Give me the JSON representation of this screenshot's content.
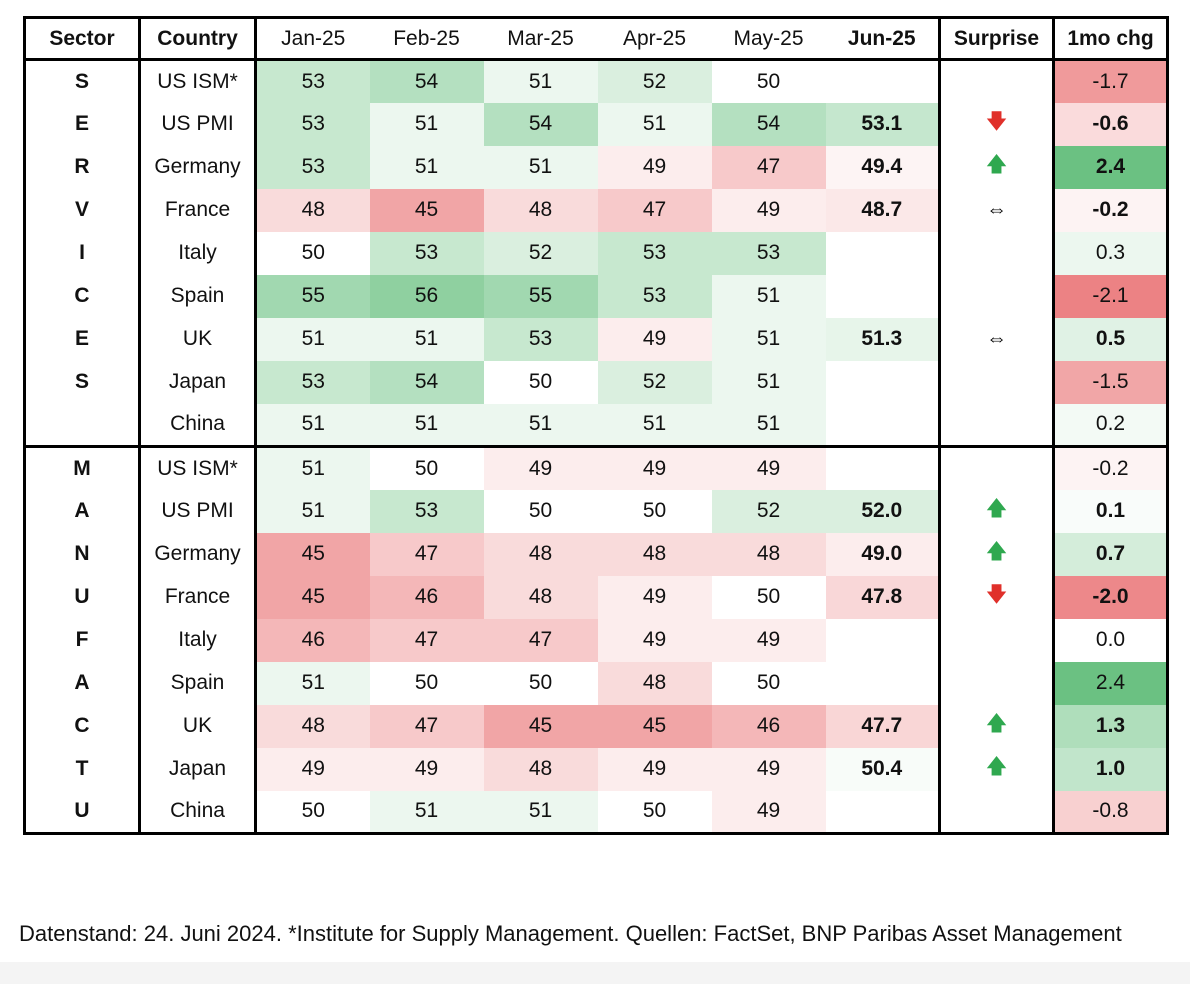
{
  "chart_data": {
    "type": "table",
    "columns": [
      "Sector",
      "Country",
      "Jan-25",
      "Feb-25",
      "Mar-25",
      "Apr-25",
      "May-25",
      "Jun-25",
      "Surprise",
      "1mo chg"
    ],
    "sectors": [
      {
        "name": "SERVICES",
        "rows": [
          {
            "country": "US ISM*",
            "values": [
              "53",
              "54",
              "51",
              "52",
              "50"
            ],
            "jun": "",
            "surprise": "",
            "chg": "-1.7",
            "chg_bold": false,
            "group_start": false
          },
          {
            "country": "US PMI",
            "values": [
              "53",
              "51",
              "54",
              "51",
              "54"
            ],
            "jun": "53.1",
            "surprise": "down",
            "chg": "-0.6",
            "chg_bold": true,
            "group_start": false
          },
          {
            "country": "Germany",
            "values": [
              "53",
              "51",
              "51",
              "49",
              "47"
            ],
            "jun": "49.4",
            "surprise": "up",
            "chg": "2.4",
            "chg_bold": true,
            "group_start": true
          },
          {
            "country": "France",
            "values": [
              "48",
              "45",
              "48",
              "47",
              "49"
            ],
            "jun": "48.7",
            "surprise": "flat",
            "chg": "-0.2",
            "chg_bold": true,
            "group_start": false
          },
          {
            "country": "Italy",
            "values": [
              "50",
              "53",
              "52",
              "53",
              "53"
            ],
            "jun": "",
            "surprise": "",
            "chg": "0.3",
            "chg_bold": false,
            "group_start": false
          },
          {
            "country": "Spain",
            "values": [
              "55",
              "56",
              "55",
              "53",
              "51"
            ],
            "jun": "",
            "surprise": "",
            "chg": "-2.1",
            "chg_bold": false,
            "group_start": false
          },
          {
            "country": "UK",
            "values": [
              "51",
              "51",
              "53",
              "49",
              "51"
            ],
            "jun": "51.3",
            "surprise": "flat",
            "chg": "0.5",
            "chg_bold": true,
            "group_start": false
          },
          {
            "country": "Japan",
            "values": [
              "53",
              "54",
              "50",
              "52",
              "51"
            ],
            "jun": "",
            "surprise": "",
            "chg": "-1.5",
            "chg_bold": false,
            "group_start": true
          },
          {
            "country": "China",
            "values": [
              "51",
              "51",
              "51",
              "51",
              "51"
            ],
            "jun": "",
            "surprise": "",
            "chg": "0.2",
            "chg_bold": false,
            "group_start": false
          }
        ]
      },
      {
        "name": "MANUFACTU",
        "rows": [
          {
            "country": "US ISM*",
            "values": [
              "51",
              "50",
              "49",
              "49",
              "49"
            ],
            "jun": "",
            "surprise": "",
            "chg": "-0.2",
            "chg_bold": false,
            "group_start": false
          },
          {
            "country": "US PMI",
            "values": [
              "51",
              "53",
              "50",
              "50",
              "52"
            ],
            "jun": "52.0",
            "surprise": "up",
            "chg": "0.1",
            "chg_bold": true,
            "group_start": false
          },
          {
            "country": "Germany",
            "values": [
              "45",
              "47",
              "48",
              "48",
              "48"
            ],
            "jun": "49.0",
            "surprise": "up",
            "chg": "0.7",
            "chg_bold": true,
            "group_start": true
          },
          {
            "country": "France",
            "values": [
              "45",
              "46",
              "48",
              "49",
              "50"
            ],
            "jun": "47.8",
            "surprise": "down",
            "chg": "-2.0",
            "chg_bold": true,
            "group_start": false
          },
          {
            "country": "Italy",
            "values": [
              "46",
              "47",
              "47",
              "49",
              "49"
            ],
            "jun": "",
            "surprise": "",
            "chg": "0.0",
            "chg_bold": false,
            "group_start": false
          },
          {
            "country": "Spain",
            "values": [
              "51",
              "50",
              "50",
              "48",
              "50"
            ],
            "jun": "",
            "surprise": "",
            "chg": "2.4",
            "chg_bold": false,
            "group_start": false
          },
          {
            "country": "UK",
            "values": [
              "48",
              "47",
              "45",
              "45",
              "46"
            ],
            "jun": "47.7",
            "surprise": "up",
            "chg": "1.3",
            "chg_bold": true,
            "group_start": false
          },
          {
            "country": "Japan",
            "values": [
              "49",
              "49",
              "48",
              "49",
              "49"
            ],
            "jun": "50.4",
            "surprise": "up",
            "chg": "1.0",
            "chg_bold": true,
            "group_start": true
          },
          {
            "country": "China",
            "values": [
              "50",
              "51",
              "51",
              "50",
              "49"
            ],
            "jun": "",
            "surprise": "",
            "chg": "-0.8",
            "chg_bold": false,
            "group_start": false
          }
        ]
      }
    ]
  },
  "surprise_glyphs": {
    "up": "🡅",
    "down": "🡇",
    "flat": "⇔"
  },
  "colors": {
    "positive": "#63be7b",
    "negative": "#e8696b",
    "neutral": "#ffffff",
    "arrow_up": "#2fa84f",
    "arrow_down": "#e0302a"
  },
  "footnote": "Datenstand: 24. Juni 2024. *Institute for Supply Management. Quellen: FactSet, BNP Paribas Asset Management"
}
